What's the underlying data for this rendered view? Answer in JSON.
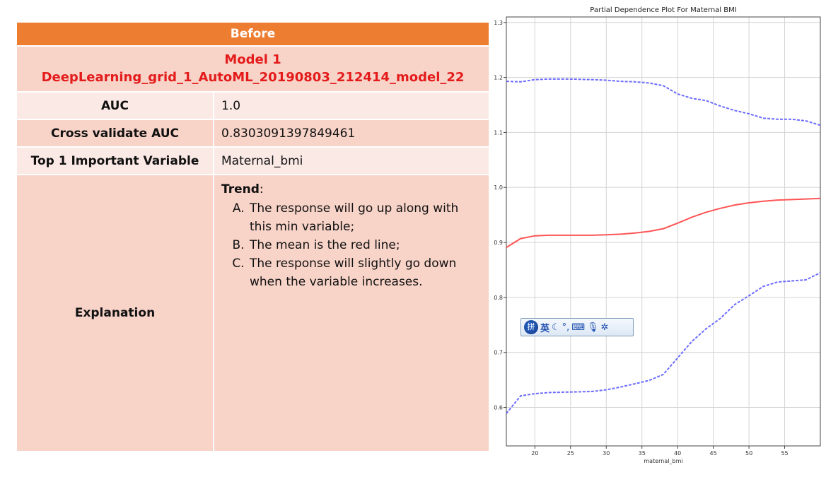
{
  "table": {
    "header": "Before",
    "model_line1": "Model 1",
    "model_line2": "DeepLearning_grid_1_AutoML_20190803_212414_model_22",
    "rows": [
      {
        "label": "AUC",
        "value": "1.0"
      },
      {
        "label": "Cross validate AUC",
        "value": "0.8303091397849461"
      },
      {
        "label": "Top 1 Important Variable",
        "value": "Maternal_bmi"
      }
    ],
    "explanation": {
      "label": "Explanation",
      "trend_title": "Trend",
      "trend_colon": ":",
      "items": [
        "The response will go up along with this min variable;",
        "The mean is the red line;",
        "The response will slightly go down when the variable increases."
      ]
    }
  },
  "ime_toolbar": {
    "logo": "拼",
    "lang": "英",
    "icons": [
      "moon-icon",
      "punctuation-icon",
      "keyboard-icon",
      "microphone-icon",
      "settings-icon"
    ]
  },
  "chart_data": {
    "type": "line",
    "title": "Partial Dependence Plot For Maternal BMI",
    "xlabel": "maternal_bmi",
    "ylabel": "",
    "xlim": [
      16,
      60
    ],
    "ylim": [
      0.53,
      1.31
    ],
    "xticks": [
      20,
      25,
      30,
      35,
      40,
      45,
      50,
      55
    ],
    "yticks": [
      0.6,
      0.7,
      0.8,
      0.9,
      1.0,
      1.1,
      1.2,
      1.3
    ],
    "grid": true,
    "series": [
      {
        "color": "#6b6bff",
        "style": "dashed",
        "x": [
          16,
          18,
          20,
          22,
          25,
          28,
          30,
          32,
          34,
          36,
          38,
          40,
          42,
          44,
          46,
          48,
          50,
          52,
          54,
          56,
          58,
          60
        ],
        "y": [
          1.193,
          1.192,
          1.196,
          1.197,
          1.197,
          1.196,
          1.195,
          1.193,
          1.192,
          1.19,
          1.185,
          1.17,
          1.162,
          1.158,
          1.148,
          1.14,
          1.134,
          1.126,
          1.124,
          1.124,
          1.121,
          1.113
        ]
      },
      {
        "color": "#ff5555",
        "style": "solid",
        "x": [
          16,
          18,
          20,
          22,
          25,
          28,
          30,
          32,
          34,
          36,
          38,
          40,
          42,
          44,
          46,
          48,
          50,
          52,
          54,
          56,
          58,
          60
        ],
        "y": [
          0.891,
          0.907,
          0.912,
          0.913,
          0.913,
          0.913,
          0.914,
          0.915,
          0.917,
          0.92,
          0.925,
          0.935,
          0.946,
          0.955,
          0.962,
          0.968,
          0.972,
          0.975,
          0.977,
          0.978,
          0.979,
          0.98
        ]
      },
      {
        "color": "#6b6bff",
        "style": "dashed",
        "x": [
          16,
          18,
          20,
          22,
          25,
          28,
          30,
          32,
          34,
          36,
          38,
          40,
          42,
          44,
          46,
          48,
          50,
          52,
          54,
          56,
          58,
          60
        ],
        "y": [
          0.589,
          0.621,
          0.625,
          0.627,
          0.628,
          0.629,
          0.632,
          0.637,
          0.643,
          0.649,
          0.66,
          0.69,
          0.72,
          0.743,
          0.762,
          0.787,
          0.803,
          0.82,
          0.828,
          0.83,
          0.832,
          0.845
        ]
      }
    ]
  }
}
